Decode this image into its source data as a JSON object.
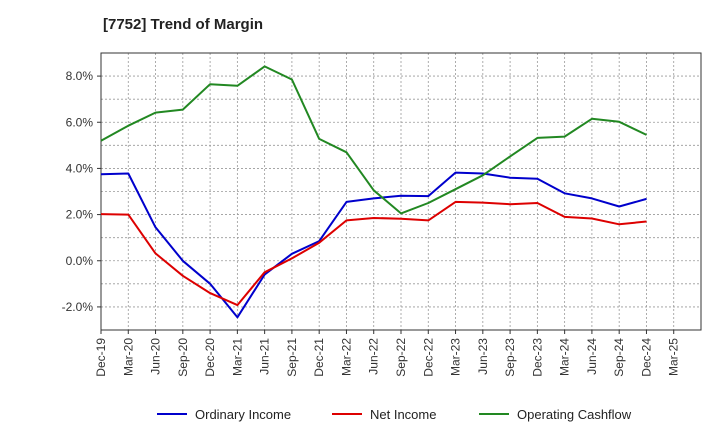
{
  "chart_data": {
    "type": "line",
    "title": "[7752]  Trend of Margin",
    "xlabel": "",
    "ylabel": "",
    "categories": [
      "Dec-19",
      "Mar-20",
      "Jun-20",
      "Sep-20",
      "Dec-20",
      "Mar-21",
      "Jun-21",
      "Sep-21",
      "Dec-21",
      "Mar-22",
      "Jun-22",
      "Sep-22",
      "Dec-22",
      "Mar-23",
      "Jun-23",
      "Sep-23",
      "Dec-23",
      "Mar-24",
      "Jun-24",
      "Sep-24",
      "Dec-24",
      "Mar-25"
    ],
    "ylim": [
      -3.0,
      9.0
    ],
    "yticks": [
      -2.0,
      0.0,
      2.0,
      4.0,
      6.0,
      8.0
    ],
    "ytick_labels": [
      "-2.0%",
      "0.0%",
      "2.0%",
      "4.0%",
      "6.0%",
      "8.0%"
    ],
    "grid": true,
    "legend": "bottom",
    "series": [
      {
        "name": "Ordinary Income",
        "color": "#0000cc",
        "values": [
          3.75,
          3.78,
          1.45,
          0.0,
          -1.0,
          -2.45,
          -0.6,
          0.3,
          0.85,
          2.55,
          2.7,
          2.82,
          2.8,
          3.82,
          3.78,
          3.6,
          3.55,
          2.92,
          2.7,
          2.35,
          2.68,
          null
        ]
      },
      {
        "name": "Net Income",
        "color": "#dd0000",
        "values": [
          2.02,
          2.0,
          0.32,
          -0.65,
          -1.4,
          -1.92,
          -0.5,
          0.1,
          0.78,
          1.75,
          1.85,
          1.82,
          1.75,
          2.55,
          2.52,
          2.45,
          2.5,
          1.9,
          1.83,
          1.58,
          1.7,
          null
        ]
      },
      {
        "name": "Operating Cashflow",
        "color": "#228822",
        "values": [
          5.2,
          5.85,
          6.42,
          6.55,
          7.65,
          7.58,
          8.42,
          7.85,
          5.28,
          4.7,
          3.05,
          2.05,
          2.5,
          3.1,
          3.7,
          4.52,
          5.32,
          5.38,
          6.15,
          6.02,
          5.45,
          null
        ]
      }
    ]
  }
}
